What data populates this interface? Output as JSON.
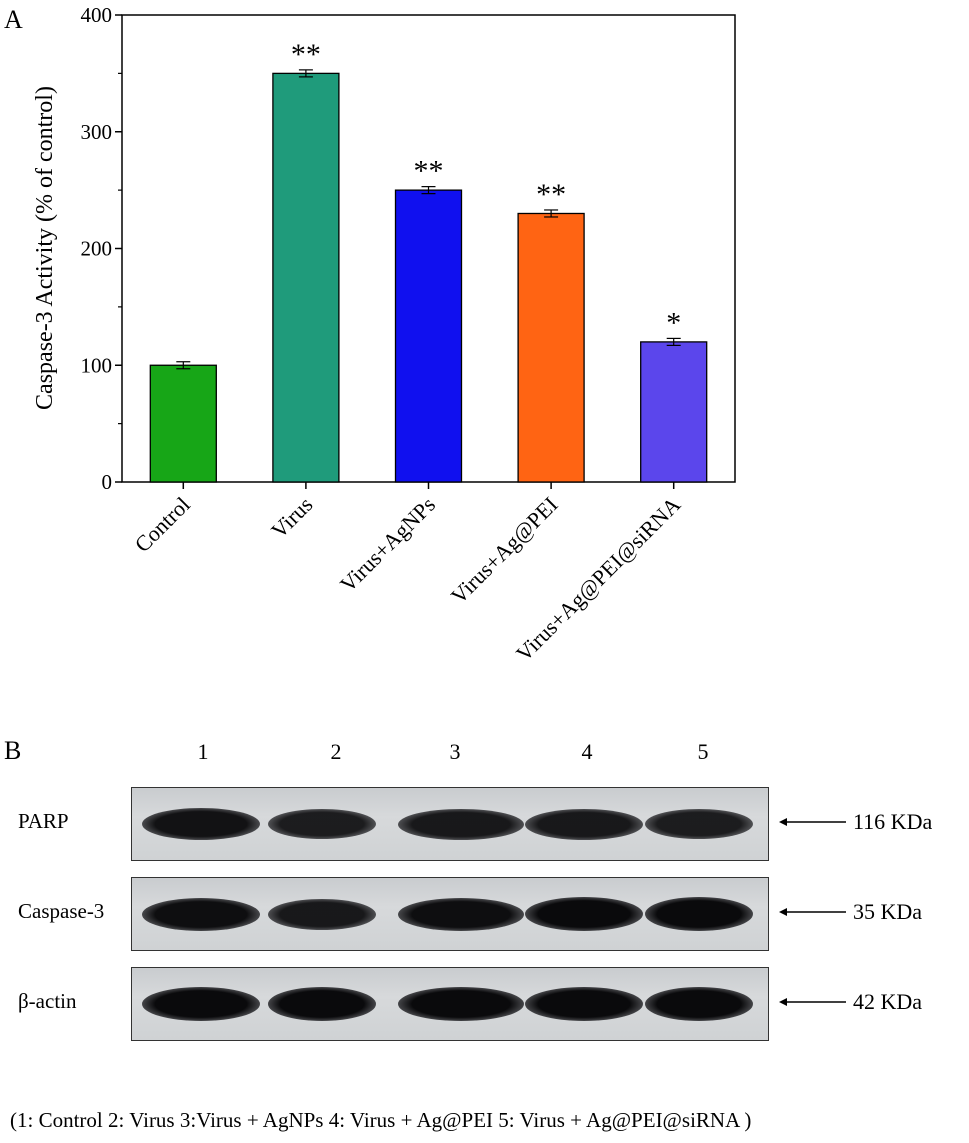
{
  "panel_a": {
    "label": "A",
    "chart_data": {
      "type": "bar",
      "categories": [
        "Control",
        "Virus",
        "Virus+AgNPs",
        "Virus+Ag@PEI",
        "Virus+Ag@PEI@siRNA"
      ],
      "values": [
        100,
        350,
        250,
        230,
        120
      ],
      "errors": [
        3,
        3,
        3,
        3,
        3
      ],
      "significance": [
        "",
        "**",
        "**",
        "**",
        "*"
      ],
      "bar_colors": [
        "#17a617",
        "#1f9b7b",
        "#1010ef",
        "#ff6413",
        "#5b46ec"
      ],
      "xlabel": "",
      "ylabel": "Caspase-3 Activity  (% of control)",
      "ylim": [
        0,
        400
      ],
      "yticks": [
        0,
        100,
        200,
        300,
        400
      ],
      "grid": false
    }
  },
  "panel_b": {
    "label": "B",
    "lanes": [
      "1",
      "2",
      "3",
      "4",
      "5"
    ],
    "rows": [
      {
        "name": "PARP",
        "marker": "116 KDa",
        "intensity": [
          0.9,
          0.8,
          0.85,
          0.85,
          0.8
        ]
      },
      {
        "name": "Caspase-3",
        "marker": "35 KDa",
        "intensity": [
          0.95,
          0.85,
          0.95,
          1.0,
          1.0
        ]
      },
      {
        "name": "β-actin",
        "marker": "42 KDa",
        "intensity": [
          1.0,
          1.0,
          1.0,
          1.0,
          1.0
        ]
      }
    ],
    "caption": "(1: Control  2: Virus  3:Virus + AgNPs   4: Virus + Ag@PEI  5: Virus + Ag@PEI@siRNA )"
  }
}
